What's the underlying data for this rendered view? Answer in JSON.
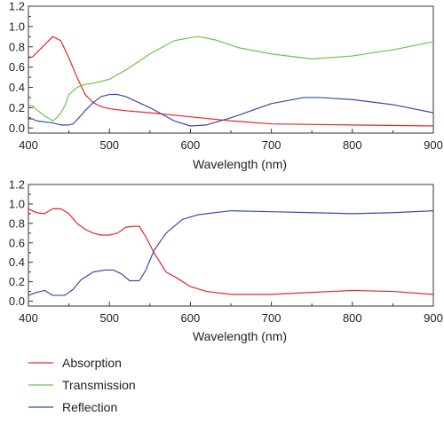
{
  "colors": {
    "absorption": "#e8262a",
    "transmission": "#6cc34a",
    "reflection": "#3a4aa6",
    "axis": "#333333"
  },
  "legend": {
    "placement": "bottom-left",
    "items": [
      {
        "name": "Absorption",
        "color": "#e8262a"
      },
      {
        "name": "Transmission",
        "color": "#6cc34a"
      },
      {
        "name": "Reflection",
        "color": "#3a4aa6"
      }
    ]
  },
  "chart_data": [
    {
      "type": "line",
      "title": "",
      "xlabel": "Wavelength (nm)",
      "ylabel": "",
      "xlim": [
        400,
        900
      ],
      "ylim": [
        -0.05,
        1.2
      ],
      "xticks": [
        400,
        500,
        600,
        700,
        800,
        900
      ],
      "yticks": [
        0.0,
        0.2,
        0.4,
        0.6,
        0.8,
        1.0,
        1.2
      ],
      "ytick_labels": [
        "0.0",
        "0.2",
        "0.4",
        "0.6",
        "0.8",
        "1.0",
        "1.2"
      ],
      "grid": false,
      "series": [
        {
          "name": "Absorption",
          "color": "#e8262a",
          "points": [
            [
              400,
              0.69
            ],
            [
              405,
              0.7
            ],
            [
              410,
              0.74
            ],
            [
              420,
              0.82
            ],
            [
              430,
              0.9
            ],
            [
              440,
              0.86
            ],
            [
              450,
              0.69
            ],
            [
              460,
              0.5
            ],
            [
              470,
              0.33
            ],
            [
              480,
              0.25
            ],
            [
              490,
              0.21
            ],
            [
              500,
              0.19
            ],
            [
              520,
              0.17
            ],
            [
              550,
              0.15
            ],
            [
              600,
              0.11
            ],
            [
              650,
              0.07
            ],
            [
              700,
              0.04
            ],
            [
              800,
              0.03
            ],
            [
              900,
              0.02
            ]
          ]
        },
        {
          "name": "Transmission",
          "color": "#6cc34a",
          "points": [
            [
              400,
              0.22
            ],
            [
              405,
              0.22
            ],
            [
              410,
              0.18
            ],
            [
              420,
              0.12
            ],
            [
              430,
              0.07
            ],
            [
              435,
              0.1
            ],
            [
              440,
              0.15
            ],
            [
              445,
              0.22
            ],
            [
              450,
              0.33
            ],
            [
              460,
              0.4
            ],
            [
              470,
              0.43
            ],
            [
              480,
              0.44
            ],
            [
              500,
              0.48
            ],
            [
              520,
              0.57
            ],
            [
              550,
              0.73
            ],
            [
              580,
              0.86
            ],
            [
              600,
              0.89
            ],
            [
              610,
              0.9
            ],
            [
              630,
              0.87
            ],
            [
              660,
              0.79
            ],
            [
              700,
              0.73
            ],
            [
              750,
              0.68
            ],
            [
              800,
              0.71
            ],
            [
              850,
              0.77
            ],
            [
              900,
              0.85
            ]
          ]
        },
        {
          "name": "Reflection",
          "color": "#3a4aa6",
          "points": [
            [
              400,
              0.09
            ],
            [
              405,
              0.09
            ],
            [
              410,
              0.07
            ],
            [
              420,
              0.06
            ],
            [
              430,
              0.05
            ],
            [
              440,
              0.03
            ],
            [
              450,
              0.03
            ],
            [
              455,
              0.04
            ],
            [
              460,
              0.08
            ],
            [
              470,
              0.17
            ],
            [
              480,
              0.25
            ],
            [
              490,
              0.31
            ],
            [
              500,
              0.33
            ],
            [
              510,
              0.33
            ],
            [
              520,
              0.31
            ],
            [
              550,
              0.2
            ],
            [
              580,
              0.07
            ],
            [
              600,
              0.02
            ],
            [
              620,
              0.03
            ],
            [
              650,
              0.1
            ],
            [
              700,
              0.24
            ],
            [
              740,
              0.3
            ],
            [
              760,
              0.3
            ],
            [
              800,
              0.28
            ],
            [
              850,
              0.23
            ],
            [
              900,
              0.15
            ]
          ]
        }
      ]
    },
    {
      "type": "line",
      "title": "",
      "xlabel": "Wavelength (nm)",
      "ylabel": "",
      "xlim": [
        400,
        900
      ],
      "ylim": [
        -0.05,
        1.2
      ],
      "xticks": [
        400,
        500,
        600,
        700,
        800,
        900
      ],
      "yticks": [
        0.0,
        0.2,
        0.4,
        0.6,
        0.8,
        1.0,
        1.2
      ],
      "ytick_labels": [
        "0.0",
        "0.2",
        "0.4",
        "0.6",
        "0.8",
        "1.0",
        "1.2"
      ],
      "grid": false,
      "series": [
        {
          "name": "Absorption",
          "color": "#e8262a",
          "points": [
            [
              400,
              0.95
            ],
            [
              410,
              0.91
            ],
            [
              420,
              0.9
            ],
            [
              430,
              0.95
            ],
            [
              440,
              0.95
            ],
            [
              450,
              0.9
            ],
            [
              460,
              0.8
            ],
            [
              470,
              0.74
            ],
            [
              480,
              0.7
            ],
            [
              490,
              0.68
            ],
            [
              500,
              0.68
            ],
            [
              510,
              0.7
            ],
            [
              520,
              0.76
            ],
            [
              530,
              0.77
            ],
            [
              537,
              0.77
            ],
            [
              545,
              0.66
            ],
            [
              555,
              0.5
            ],
            [
              570,
              0.3
            ],
            [
              585,
              0.23
            ],
            [
              600,
              0.15
            ],
            [
              620,
              0.1
            ],
            [
              650,
              0.07
            ],
            [
              700,
              0.07
            ],
            [
              750,
              0.09
            ],
            [
              800,
              0.11
            ],
            [
              850,
              0.1
            ],
            [
              900,
              0.07
            ]
          ]
        },
        {
          "name": "Reflection",
          "color": "#3a4aa6",
          "points": [
            [
              400,
              0.06
            ],
            [
              410,
              0.09
            ],
            [
              420,
              0.11
            ],
            [
              430,
              0.06
            ],
            [
              445,
              0.06
            ],
            [
              455,
              0.12
            ],
            [
              465,
              0.22
            ],
            [
              480,
              0.3
            ],
            [
              495,
              0.32
            ],
            [
              505,
              0.32
            ],
            [
              515,
              0.28
            ],
            [
              525,
              0.21
            ],
            [
              537,
              0.21
            ],
            [
              545,
              0.32
            ],
            [
              555,
              0.52
            ],
            [
              570,
              0.7
            ],
            [
              590,
              0.84
            ],
            [
              610,
              0.89
            ],
            [
              650,
              0.93
            ],
            [
              700,
              0.92
            ],
            [
              750,
              0.91
            ],
            [
              800,
              0.9
            ],
            [
              850,
              0.91
            ],
            [
              900,
              0.93
            ]
          ]
        }
      ]
    }
  ]
}
